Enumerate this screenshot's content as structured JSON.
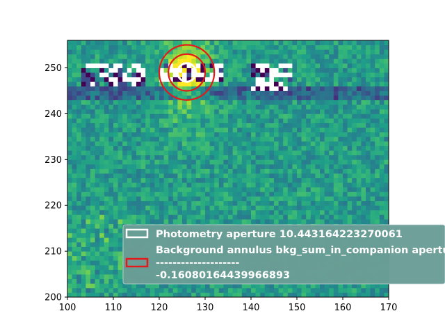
{
  "chart_data": {
    "type": "heatmap",
    "title": "",
    "xlabel": "",
    "ylabel": "",
    "xlim": [
      100,
      170
    ],
    "ylim": [
      200,
      256
    ],
    "x_ticks": [
      100,
      110,
      120,
      130,
      140,
      150,
      160,
      170
    ],
    "y_ticks": [
      200,
      210,
      220,
      230,
      240,
      250
    ],
    "colormap": "viridis",
    "grid": false,
    "apertures": [
      {
        "name": "photometry-aperture",
        "center": [
          126,
          249
        ],
        "radius": 2.0,
        "color": "#ffffff"
      },
      {
        "name": "annulus-inner",
        "center": [
          126,
          249
        ],
        "radius": 4.0,
        "color": "#e31a1c"
      },
      {
        "name": "annulus-outer",
        "center": [
          126,
          249
        ],
        "radius": 6.0,
        "color": "#e31a1c"
      }
    ],
    "legend": {
      "placement": "lower-right",
      "background": "#6a9d96",
      "entries": [
        {
          "label": "Photometry aperture 10.443164223270061",
          "edge_color": "#ffffff"
        },
        {
          "label_lines": [
            "Background annulus bkg_sum_in_companion    aperture_sum_bkgsub",
            "--------------------",
            "-0.16080164439966893"
          ],
          "edge_color": "#e31a1c"
        }
      ]
    },
    "saturated_blobs": [
      {
        "x": [
          103,
          117
        ],
        "y": [
          246,
          251
        ]
      },
      {
        "x": [
          120,
          134
        ],
        "y": [
          247,
          251
        ]
      },
      {
        "x": [
          140,
          149
        ],
        "y": [
          245,
          251
        ]
      }
    ]
  }
}
